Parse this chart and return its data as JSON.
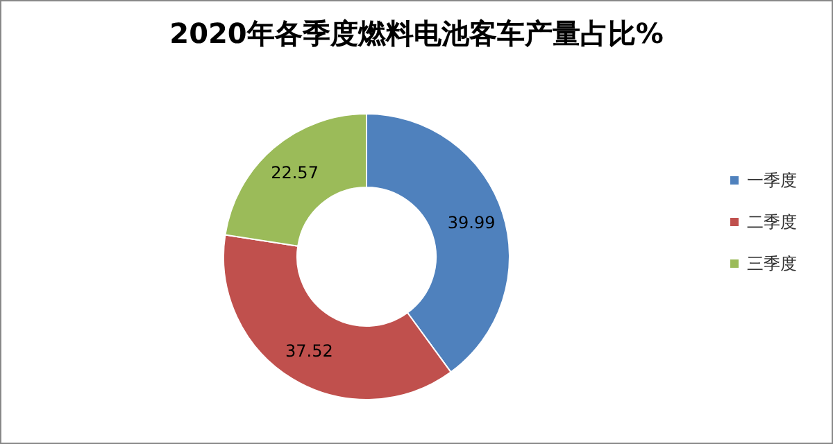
{
  "chart_data": {
    "type": "donut",
    "title": "2020年各季度燃料电池客车产量占比%",
    "categories": [
      "一季度",
      "二季度",
      "三季度"
    ],
    "values": [
      39.99,
      37.52,
      22.57
    ],
    "colors": [
      "#4f81bd",
      "#c0504d",
      "#9bbb59"
    ],
    "data_labels": true,
    "legend": "right"
  }
}
